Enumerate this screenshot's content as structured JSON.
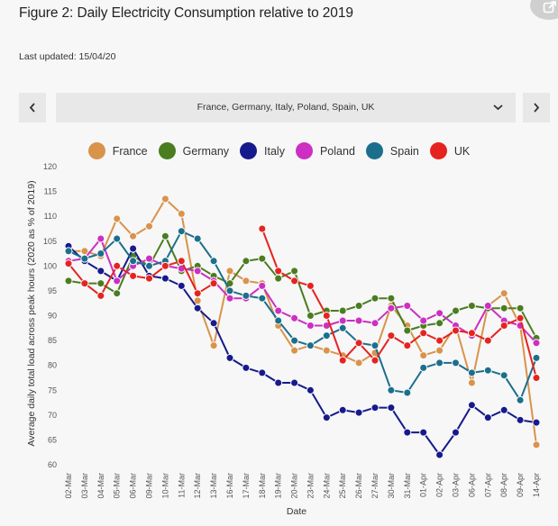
{
  "header": {
    "title": "Figure 2: Daily Electricity Consumption relative to 2019",
    "updated": "Last updated: 15/04/20"
  },
  "selector": {
    "prev_icon": "chevron-left-icon",
    "next_icon": "chevron-right-icon",
    "caret_icon": "chevron-down-icon",
    "value": "France, Germany, Italy, Poland, Spain, UK"
  },
  "chart_data": {
    "type": "line",
    "xlabel": "Date",
    "ylabel": "Average daily total load across peak hours (2020 as % of 2019)",
    "ylim": [
      60,
      120
    ],
    "yticks": [
      60,
      65,
      70,
      75,
      80,
      85,
      90,
      95,
      100,
      105,
      110,
      115,
      120
    ],
    "grid": false,
    "legend": "top",
    "categories": [
      "02-Mar",
      "03-Mar",
      "04-Mar",
      "05-Mar",
      "06-Mar",
      "09-Mar",
      "10-Mar",
      "11-Mar",
      "12-Mar",
      "13-Mar",
      "16-Mar",
      "17-Mar",
      "18-Mar",
      "19-Mar",
      "20-Mar",
      "23-Mar",
      "24-Mar",
      "25-Mar",
      "26-Mar",
      "27-Mar",
      "30-Mar",
      "31-Mar",
      "01-Apr",
      "02-Apr",
      "03-Apr",
      "06-Apr",
      "07-Apr",
      "08-Apr",
      "09-Apr",
      "14-Apr"
    ],
    "series": [
      {
        "name": "France",
        "color": "#d9934a",
        "values": [
          103,
          103,
          102,
          109.5,
          106,
          108,
          113.5,
          110.5,
          93,
          84,
          99,
          97,
          96.5,
          88,
          83,
          84,
          83,
          82,
          80.5,
          82.5,
          92,
          88,
          82,
          83,
          88,
          76.5,
          92,
          94.5,
          88,
          64
        ]
      },
      {
        "name": "Germany",
        "color": "#4a7d1f",
        "values": [
          97,
          96.5,
          96.5,
          94.5,
          102,
          100,
          106,
          99,
          100,
          98,
          96.5,
          101,
          101.5,
          97.5,
          99,
          90,
          91,
          91,
          92,
          93.5,
          93.5,
          87,
          88,
          88.5,
          91,
          92,
          91.5,
          91.5,
          91.5,
          85.5
        ]
      },
      {
        "name": "Italy",
        "color": "#151a8c",
        "values": [
          104,
          101,
          99,
          97,
          103.5,
          98,
          97.5,
          96,
          91.5,
          88.5,
          81.5,
          79.5,
          78.5,
          76.5,
          76.5,
          75,
          69.5,
          71,
          70.5,
          71.5,
          71.5,
          66.5,
          66.5,
          62,
          66.5,
          72,
          69.5,
          71,
          69,
          68.5
        ]
      },
      {
        "name": "Poland",
        "color": "#cc2fc2",
        "values": [
          101,
          101.5,
          105.5,
          97,
          100,
          101.5,
          100,
          99.5,
          99,
          97,
          93.5,
          93.5,
          96,
          91,
          89.5,
          88,
          88,
          89,
          89,
          88.5,
          91.5,
          92,
          89,
          90.5,
          88,
          86,
          92,
          89,
          88,
          84.5
        ]
      },
      {
        "name": "Spain",
        "color": "#1b6f8c",
        "values": [
          103,
          101.5,
          102.5,
          105.5,
          101,
          100,
          101,
          107,
          105.5,
          101,
          95,
          94,
          93.5,
          89,
          85,
          84,
          86,
          87.5,
          84.5,
          84,
          75,
          74.5,
          79.5,
          80.5,
          80.5,
          78.5,
          79,
          78,
          73,
          81.5
        ]
      },
      {
        "name": "UK",
        "color": "#e5231f",
        "values": [
          100.5,
          96.5,
          94,
          100,
          98,
          97.5,
          100,
          101,
          94.5,
          96.5,
          null,
          null,
          107.5,
          99,
          97,
          96,
          90,
          81,
          84.5,
          81,
          86,
          84,
          86.5,
          85,
          87,
          86.5,
          85,
          88,
          89.5,
          77.5
        ]
      }
    ]
  }
}
